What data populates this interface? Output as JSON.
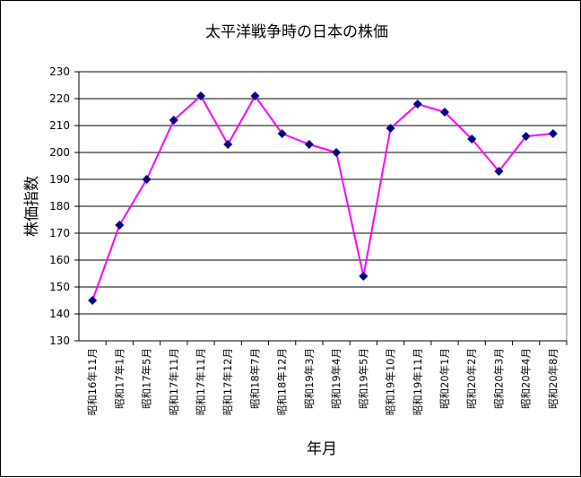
{
  "chart_data": {
    "type": "line",
    "title": "太平洋戦争時の日本の株価",
    "xlabel": "年月",
    "ylabel": "株価指数",
    "ylim": [
      130,
      230
    ],
    "yticks": [
      130,
      140,
      150,
      160,
      170,
      180,
      190,
      200,
      210,
      220,
      230
    ],
    "grid": true,
    "legend": "none",
    "categories": [
      "昭和16年11月",
      "昭和17年1月",
      "昭和17年5月",
      "昭和17年11月",
      "昭和17年11月",
      "昭和17年12月",
      "昭和18年7月",
      "昭和18年12月",
      "昭和19年3月",
      "昭和19年4月",
      "昭和19年5月",
      "昭和19年10月",
      "昭和19年11月",
      "昭和20年1月",
      "昭和20年2月",
      "昭和20年3月",
      "昭和20年4月",
      "昭和20年8月"
    ],
    "series": [
      {
        "values": [
          145,
          173,
          190,
          212,
          221,
          203,
          221,
          207,
          203,
          200,
          154,
          209,
          218,
          215,
          205,
          193,
          206,
          207
        ]
      }
    ],
    "colors": {
      "line": "#ff00ff",
      "marker": "#000080",
      "plot_background": "#ffffff",
      "gridline": "#000000"
    }
  }
}
